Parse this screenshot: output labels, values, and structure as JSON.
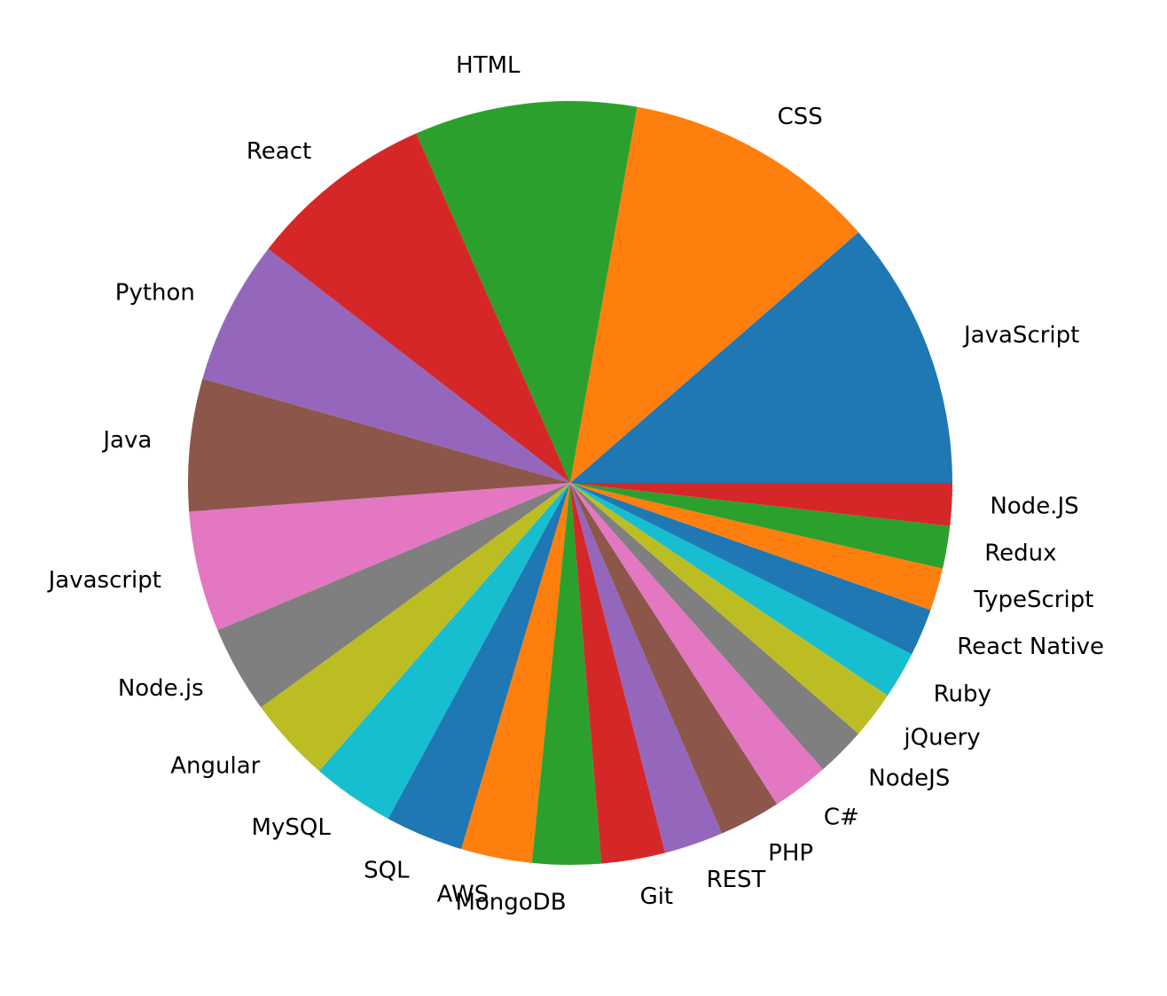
{
  "chart_data": {
    "type": "pie",
    "categories": [
      "JavaScript",
      "CSS",
      "HTML",
      "React",
      "Python",
      "Java",
      "Javascript",
      "Node.js",
      "Angular",
      "MySQL",
      "SQL",
      "AWS",
      "MongoDB",
      "Git",
      "REST",
      "PHP",
      "C#",
      "NodeJS",
      "jQuery",
      "Ruby",
      "React Native",
      "TypeScript",
      "Redux",
      "Node.JS"
    ],
    "values": [
      11.4,
      10.8,
      9.4,
      7.9,
      6.1,
      5.6,
      5.1,
      3.7,
      3.6,
      3.5,
      3.3,
      3.0,
      2.9,
      2.7,
      2.5,
      2.6,
      2.4,
      2.1,
      2.0,
      2.0,
      2.0,
      1.8,
      1.8,
      1.8
    ],
    "colors": [
      "#1f77b4",
      "#ff7f0e",
      "#2ca02c",
      "#d62728",
      "#9467bd",
      "#8c564b",
      "#e377c2",
      "#7f7f7f",
      "#bcbd22",
      "#17becf"
    ],
    "start_angle": 0,
    "direction": "counterclockwise"
  }
}
